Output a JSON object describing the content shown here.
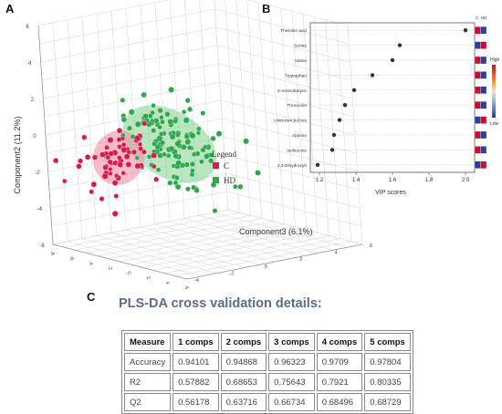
{
  "panels": {
    "a": "A",
    "b": "B",
    "c": "C"
  },
  "chart_data": [
    {
      "type": "scatter",
      "subtype": "3d-scatter",
      "title": "",
      "xlabel": "",
      "ylabel": "Component2 (11.2%)",
      "zlabel": "Component3 (6.1%)",
      "y_ticks": [
        "6",
        "4",
        "2",
        "0",
        "-2",
        "-4",
        "-6"
      ],
      "z_ticks": [
        "-4",
        "-2",
        "0",
        "2",
        "4",
        "6"
      ],
      "x_ticks": [
        "-8",
        "-6",
        "-4",
        "-2",
        "0",
        "2",
        "4",
        "6"
      ],
      "legend": {
        "title": "Legend",
        "position": "right",
        "entries": [
          {
            "label": "C",
            "color": "#d81b4a"
          },
          {
            "label": "HD",
            "color": "#2ea84a"
          }
        ]
      },
      "series": [
        {
          "name": "C",
          "color": "#d81b4a",
          "approx_points": 60
        },
        {
          "name": "HD",
          "color": "#2ea84a",
          "approx_points": 120
        }
      ],
      "grid": true
    },
    {
      "type": "scatter",
      "subtype": "vip-dot-plot",
      "xlabel": "VIP scores",
      "ylabel": "",
      "xlim": [
        1.15,
        2.05
      ],
      "x_ticks": [
        "1.2",
        "1.4",
        "1.6",
        "1.8",
        "2.0"
      ],
      "categories": [
        "Threonic acid",
        "Serine",
        "Valine",
        "Tryptophan",
        "2-Aminobutyric",
        "Threonine",
        "Unknown p-Cres",
        "Alanine",
        "Isoleucine",
        "2,4-Dihydroxyb"
      ],
      "values": [
        2.0,
        1.64,
        1.6,
        1.49,
        1.39,
        1.34,
        1.31,
        1.28,
        1.27,
        1.19
      ],
      "heatmap_columns": [
        "C",
        "HD"
      ],
      "heatmap_levels": [
        [
          "high",
          "low"
        ],
        [
          "low",
          "high"
        ],
        [
          "high",
          "low"
        ],
        [
          "high",
          "low"
        ],
        [
          "high",
          "low"
        ],
        [
          "high",
          "low"
        ],
        [
          "low",
          "high"
        ],
        [
          "high",
          "low"
        ],
        [
          "high",
          "low"
        ],
        [
          "low",
          "high"
        ]
      ],
      "colorbar": {
        "high_label": "High",
        "low_label": "Low",
        "high_color": "#c8102e",
        "low_color": "#2b3f9e"
      }
    },
    {
      "type": "table",
      "title": "PLS-DA cross validation details:",
      "columns": [
        "Measure",
        "1 comps",
        "2 comps",
        "3 comps",
        "4 comps",
        "5 comps"
      ],
      "rows": [
        [
          "Accuracy",
          "0.94101",
          "0.94868",
          "0.96323",
          "0.9709",
          "0.97804"
        ],
        [
          "R2",
          "0.57882",
          "0.68653",
          "0.75643",
          "0.7921",
          "0.80335"
        ],
        [
          "Q2",
          "0.56178",
          "0.63716",
          "0.66734",
          "0.68496",
          "0.68729"
        ]
      ]
    }
  ]
}
